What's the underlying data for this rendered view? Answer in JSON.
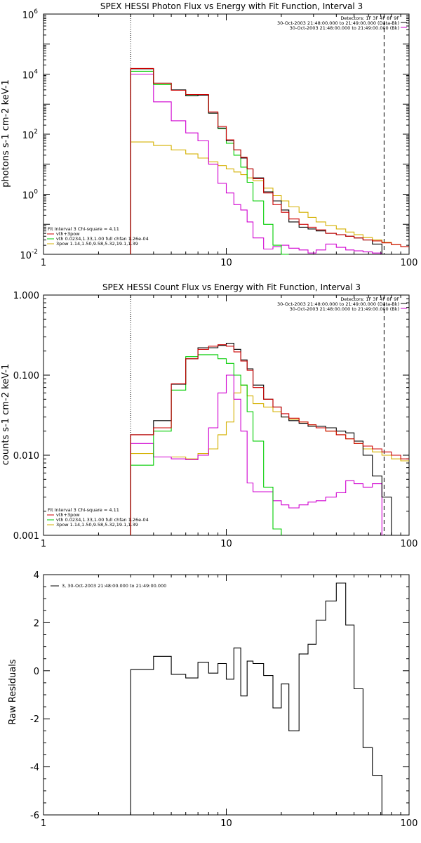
{
  "colors": {
    "total": "#000000",
    "sum": "#cc0000",
    "vth": "#00cc00",
    "bpow": "#d4b000",
    "bkg": "#d000d0"
  },
  "chart_data": [
    {
      "type": "line",
      "title": "SPEX HESSI Photon Flux vs Energy with Fit Function, Interval 3",
      "ylabel": "photons s-1 cm-2 keV-1",
      "xlabel": "",
      "xscale": "log",
      "yscale": "log",
      "xlim": [
        1,
        100
      ],
      "ylim": [
        0.01,
        1000000
      ],
      "xticks": [
        "1",
        "10",
        "100"
      ],
      "yticks": [
        {
          "base": "10",
          "exp": "-2",
          "v": 0.01
        },
        {
          "base": "10",
          "exp": "0",
          "v": 1
        },
        {
          "base": "10",
          "exp": "2",
          "v": 100
        },
        {
          "base": "10",
          "exp": "4",
          "v": 10000
        },
        {
          "base": "10",
          "exp": "6",
          "v": 1000000
        }
      ],
      "info_lines": [
        "Detectors: 1F 3F 4F 8F 9F",
        "30-Oct-2003 21:48:00.000 to 21:49:00.000 (Data-Bk)",
        "30-Oct-2003 21:48:00.000 to 21:49:00.000 (Bk)"
      ],
      "fit_lines": [
        "Fit Interval  3    Chi-square = 4.11",
        "vth+3pow",
        "vth 0.0234,1.33,1.00  full chfan 1.26e-04",
        "3pow 1.14,1.50,9.58,5.32,19.1,1.39"
      ],
      "vlines": [
        {
          "x": 3,
          "style": "dotted"
        },
        {
          "x": 73,
          "style": "dashed"
        }
      ],
      "edges": [
        3,
        4,
        5,
        6,
        7,
        8,
        9,
        10,
        11,
        12,
        13,
        14,
        16,
        18,
        20,
        22,
        25,
        28,
        31,
        35,
        40,
        45,
        50,
        56,
        63,
        71,
        80,
        90,
        100
      ],
      "series": [
        {
          "key": "total",
          "values": [
            15000,
            5000,
            3000,
            1900,
            2000,
            500,
            160,
            60,
            30,
            16,
            7,
            3.5,
            1.2,
            0.6,
            0.3,
            0.12,
            0.08,
            0.07,
            0.06,
            0.05,
            0.045,
            0.04,
            0.035,
            0.03,
            0.022,
            null,
            null,
            null
          ]
        },
        {
          "key": "sum",
          "values": [
            15500,
            5000,
            2900,
            2100,
            2100,
            550,
            180,
            65,
            30,
            17,
            7,
            3.3,
            1.1,
            0.45,
            0.25,
            0.15,
            0.1,
            0.08,
            0.065,
            0.05,
            0.045,
            0.04,
            0.035,
            0.03,
            0.028,
            0.024,
            0.021,
            0.018
          ]
        },
        {
          "key": "vth",
          "values": [
            12500,
            4500,
            2900,
            1950,
            2000,
            500,
            155,
            50,
            20,
            8,
            2.5,
            0.6,
            0.1,
            0.02,
            0.008,
            null,
            null,
            null,
            null,
            null,
            null,
            null,
            null,
            null,
            null,
            null,
            null,
            null
          ]
        },
        {
          "key": "bpow",
          "values": [
            55,
            42,
            30,
            22,
            16,
            12,
            9,
            7,
            5.5,
            4.5,
            3.5,
            2.8,
            1.6,
            0.9,
            0.6,
            0.38,
            0.25,
            0.17,
            0.12,
            0.09,
            0.07,
            0.055,
            0.045,
            0.036,
            0.03,
            0.025,
            0.021,
            0.018
          ]
        },
        {
          "key": "bkg",
          "values": [
            10000,
            1200,
            280,
            110,
            60,
            10,
            2.3,
            1.1,
            0.45,
            0.3,
            0.12,
            0.035,
            0.015,
            0.018,
            0.02,
            0.016,
            0.014,
            0.011,
            0.014,
            0.022,
            0.017,
            0.014,
            0.013,
            0.012,
            0.011,
            null,
            null,
            null
          ]
        }
      ]
    },
    {
      "type": "line",
      "title": "SPEX HESSI Count Flux vs Energy with Fit Function, Interval 3",
      "ylabel": "counts s-1 cm-2 keV-1",
      "xlabel": "",
      "xscale": "log",
      "yscale": "log",
      "xlim": [
        1,
        100
      ],
      "ylim": [
        0.001,
        1.0
      ],
      "xticks": [
        "1",
        "10",
        "100"
      ],
      "yticks": [
        {
          "label": "0.001",
          "v": 0.001
        },
        {
          "label": "0.010",
          "v": 0.01
        },
        {
          "label": "0.100",
          "v": 0.1
        },
        {
          "label": "1.000",
          "v": 1.0
        }
      ],
      "info_lines": [
        "Detectors: 1F 3F 4F 8F 9F",
        "30-Oct-2003 21:48:00.000 to 21:49:00.000 (Data-Bk)",
        "30-Oct-2003 21:48:00.000 to 21:49:00.000 (Bk)"
      ],
      "fit_lines": [
        "Fit Interval  3    Chi-square = 4.11",
        "vth+3pow",
        "vth 0.0234,1.33,1.00  full chfan 1.26e-04",
        "3pow 1.14,1.50,9.58,5.32,19.1,1.39"
      ],
      "vlines": [
        {
          "x": 3,
          "style": "dotted"
        },
        {
          "x": 73,
          "style": "dashed"
        }
      ],
      "edges": [
        3,
        4,
        5,
        6,
        7,
        8,
        9,
        10,
        11,
        12,
        13,
        14,
        16,
        18,
        20,
        22,
        25,
        28,
        31,
        35,
        40,
        45,
        50,
        56,
        63,
        71,
        80,
        90,
        100
      ],
      "series": [
        {
          "key": "total",
          "values": [
            0.018,
            0.027,
            0.077,
            0.16,
            0.22,
            0.22,
            0.235,
            0.25,
            0.21,
            0.155,
            0.12,
            0.075,
            0.05,
            0.04,
            0.03,
            0.027,
            0.025,
            0.023,
            0.023,
            0.022,
            0.02,
            0.019,
            0.015,
            0.01,
            0.0055,
            0.003,
            null,
            null
          ]
        },
        {
          "key": "sum",
          "values": [
            0.018,
            0.022,
            0.078,
            0.16,
            0.21,
            0.23,
            0.24,
            0.23,
            0.195,
            0.15,
            0.115,
            0.07,
            0.05,
            0.04,
            0.033,
            0.029,
            0.026,
            0.024,
            0.022,
            0.02,
            0.018,
            0.016,
            0.014,
            0.013,
            0.012,
            0.011,
            0.01,
            0.009
          ]
        },
        {
          "key": "vth",
          "values": [
            0.0075,
            0.02,
            0.065,
            0.17,
            0.18,
            0.18,
            0.16,
            0.14,
            0.1,
            0.075,
            0.035,
            0.015,
            0.004,
            0.0012,
            null,
            null,
            null,
            null,
            null,
            null,
            null,
            null,
            null,
            null,
            null,
            null,
            null,
            null
          ]
        },
        {
          "key": "bpow",
          "values": [
            0.0105,
            0.0095,
            0.0095,
            0.009,
            0.0105,
            0.012,
            0.018,
            0.026,
            0.06,
            0.075,
            0.055,
            0.044,
            0.04,
            0.035,
            0.03,
            0.028,
            0.026,
            0.024,
            0.022,
            0.02,
            0.018,
            0.016,
            0.014,
            0.012,
            0.011,
            0.01,
            0.009,
            0.0085
          ]
        },
        {
          "key": "bkg",
          "values": [
            0.014,
            0.0095,
            0.009,
            0.0088,
            0.01,
            0.022,
            0.06,
            0.1,
            0.05,
            0.02,
            0.0045,
            0.0035,
            0.0035,
            0.0027,
            0.0024,
            0.0022,
            0.0024,
            0.0026,
            0.0027,
            0.003,
            0.0034,
            0.0048,
            0.0044,
            0.004,
            0.0044,
            null,
            null,
            null
          ]
        }
      ]
    },
    {
      "type": "line",
      "title": "",
      "ylabel": "Raw Residuals",
      "xlabel": "",
      "xscale": "log",
      "yscale": "linear",
      "xlim": [
        1,
        100
      ],
      "ylim": [
        -6,
        4
      ],
      "xticks": [
        "1",
        "10",
        "100"
      ],
      "yticks": [
        {
          "label": "-6",
          "v": -6
        },
        {
          "label": "-4",
          "v": -4
        },
        {
          "label": "-2",
          "v": -2
        },
        {
          "label": "0",
          "v": 0
        },
        {
          "label": "2",
          "v": 2
        },
        {
          "label": "4",
          "v": 4
        }
      ],
      "legend": "3, 30-Oct-2003 21:48:00.000 to 21:49:00.000",
      "edges": [
        3,
        4,
        5,
        6,
        7,
        8,
        9,
        10,
        11,
        12,
        13,
        14,
        16,
        18,
        20,
        22,
        25,
        28,
        31,
        35,
        40,
        45,
        50,
        56,
        63,
        71,
        80,
        90,
        100
      ],
      "series": [
        {
          "key": "total",
          "values": [
            0.05,
            0.6,
            -0.15,
            -0.3,
            0.35,
            -0.1,
            0.3,
            -0.35,
            0.95,
            -1.05,
            0.4,
            0.3,
            -0.2,
            -1.55,
            -0.55,
            -2.5,
            0.7,
            1.1,
            2.1,
            2.9,
            3.65,
            1.9,
            -0.75,
            -3.2,
            -4.35,
            -6.0,
            null,
            null
          ]
        }
      ]
    }
  ]
}
